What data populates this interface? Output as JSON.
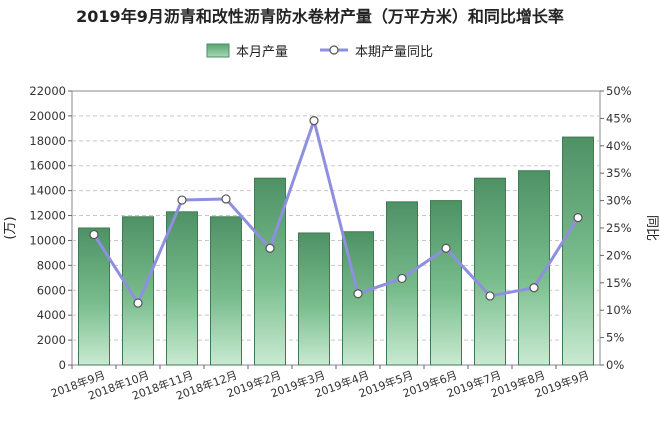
{
  "chart_data": {
    "type": "bar",
    "title": "2019年9月沥青和改性沥青防水卷材产量（万平方米）和同比增长率",
    "categories": [
      "2018年9月",
      "2018年10月",
      "2018年11月",
      "2018年12月",
      "2019年2月",
      "2019年3月",
      "2019年4月",
      "2019年5月",
      "2019年6月",
      "2019年7月",
      "2019年8月",
      "2019年9月"
    ],
    "series": [
      {
        "name": "本月产量",
        "axis": "left",
        "type": "bar",
        "color": "#5fa874",
        "values": [
          11000,
          11900,
          12300,
          11900,
          15000,
          10600,
          10700,
          13100,
          13200,
          15000,
          15600,
          18300
        ]
      },
      {
        "name": "本期产量同比",
        "axis": "right",
        "type": "line",
        "color": "#8f8fe0",
        "values": [
          23.8,
          11.3,
          30.1,
          30.3,
          21.3,
          44.6,
          13.0,
          15.8,
          21.3,
          12.6,
          14.1,
          26.9
        ]
      }
    ],
    "ylabel_left": "(万)",
    "ylabel_right": "同比",
    "ylim_left": [
      0,
      22000
    ],
    "ylim_right": [
      0,
      50
    ],
    "yticks_left": [
      "0",
      "2000",
      "4000",
      "6000",
      "8000",
      "10000",
      "12000",
      "14000",
      "16000",
      "18000",
      "20000",
      "22000"
    ],
    "yticks_right": [
      "0%",
      "5%",
      "10%",
      "15%",
      "20%",
      "25%",
      "30%",
      "35%",
      "40%",
      "45%",
      "50%"
    ],
    "grid": true,
    "legend_position": "top-center"
  }
}
